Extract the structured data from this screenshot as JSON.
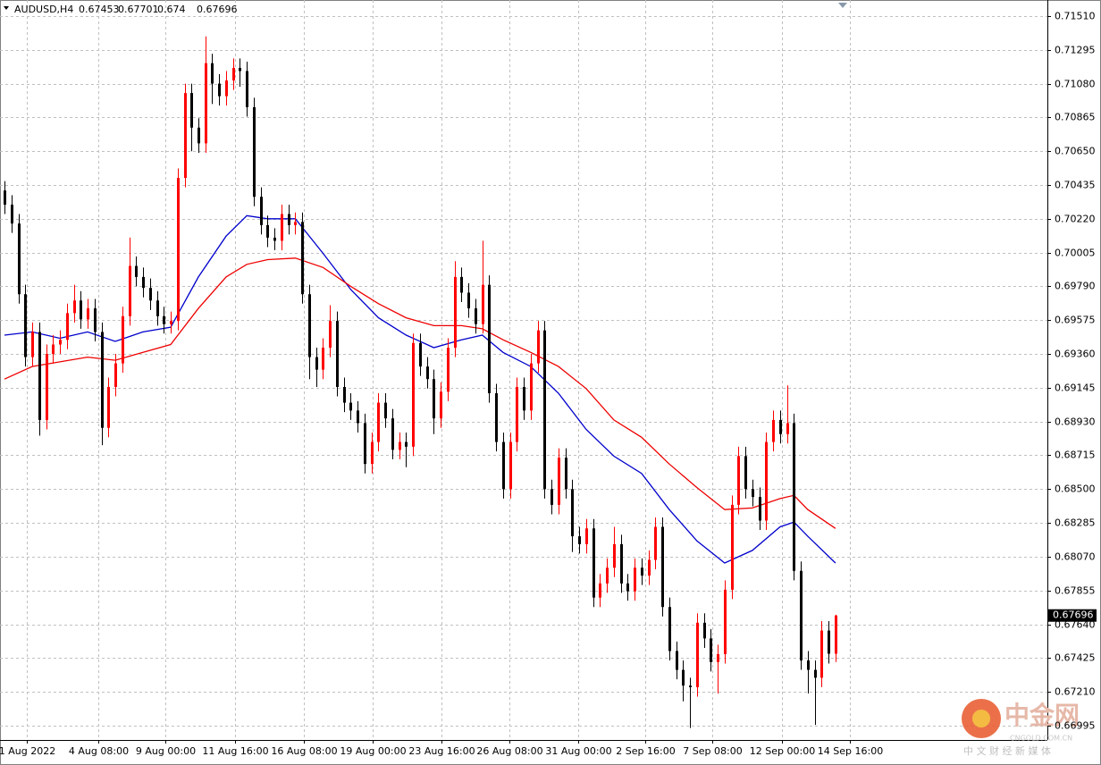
{
  "chart_data": {
    "type": "candlestick",
    "title": "AUDUSD,H4",
    "up_color": "#ff0000",
    "down_color": "#000000",
    "grid": true,
    "open": [
      0.704,
      0.7031,
      0.7019,
      0.6974,
      0.6934,
      0.695,
      0.6894,
      0.6936,
      0.6942,
      0.6945,
      0.6962,
      0.697,
      0.6958,
      0.6965,
      0.695,
      0.6889,
      0.6915,
      0.693,
      0.696,
      0.6992,
      0.6985,
      0.6978,
      0.697,
      0.696,
      0.6955,
      0.6957,
      0.7048,
      0.7102,
      0.708,
      0.707,
      0.7121,
      0.7108,
      0.71,
      0.711,
      0.7118,
      0.7116,
      0.7093,
      0.7036,
      0.7018,
      0.701,
      0.7008,
      0.7025,
      0.7018,
      0.702,
      0.6974,
      0.6934,
      0.6926,
      0.694,
      0.6957,
      0.6915,
      0.6905,
      0.69,
      0.6892,
      0.6866,
      0.688,
      0.6905,
      0.6895,
      0.6875,
      0.688,
      0.6877,
      0.6943,
      0.6928,
      0.692,
      0.6895,
      0.6912,
      0.694,
      0.6985,
      0.6975,
      0.6965,
      0.6955,
      0.698,
      0.6911,
      0.688,
      0.685,
      0.688,
      0.6915,
      0.69,
      0.693,
      0.6951,
      0.685,
      0.684,
      0.687,
      0.685,
      0.682,
      0.6815,
      0.6825,
      0.6781,
      0.679,
      0.68,
      0.6815,
      0.679,
      0.6785,
      0.68,
      0.6795,
      0.6805,
      0.6826,
      0.6775,
      0.6747,
      0.6735,
      0.6725,
      0.6724,
      0.6765,
      0.6755,
      0.674,
      0.6745,
      0.6786,
      0.684,
      0.6871,
      0.685,
      0.6845,
      0.683,
      0.688,
      0.6894,
      0.6885,
      0.6892,
      0.6798,
      0.6741,
      0.6735,
      0.673,
      0.676,
      0.67453
    ],
    "high": [
      0.7046,
      0.7037,
      0.7025,
      0.698,
      0.6956,
      0.6956,
      0.6942,
      0.6948,
      0.6951,
      0.6968,
      0.698,
      0.6976,
      0.6971,
      0.6971,
      0.6956,
      0.6921,
      0.6936,
      0.6966,
      0.701,
      0.6998,
      0.6991,
      0.6984,
      0.6976,
      0.6966,
      0.6963,
      0.7054,
      0.7108,
      0.7108,
      0.7086,
      0.7138,
      0.7127,
      0.7114,
      0.7116,
      0.7124,
      0.7124,
      0.7122,
      0.7099,
      0.7042,
      0.7024,
      0.7016,
      0.7031,
      0.7031,
      0.7026,
      0.7026,
      0.698,
      0.694,
      0.6946,
      0.6967,
      0.6963,
      0.6921,
      0.6911,
      0.6906,
      0.6898,
      0.6886,
      0.6911,
      0.6911,
      0.6901,
      0.6886,
      0.6886,
      0.6949,
      0.6949,
      0.6934,
      0.6926,
      0.6918,
      0.6946,
      0.6995,
      0.6991,
      0.6981,
      0.6971,
      0.7008,
      0.6986,
      0.6917,
      0.6886,
      0.6886,
      0.6921,
      0.6921,
      0.6936,
      0.6957,
      0.6957,
      0.6856,
      0.6876,
      0.6876,
      0.6856,
      0.6826,
      0.6831,
      0.6831,
      0.6796,
      0.6806,
      0.6826,
      0.6821,
      0.6796,
      0.6806,
      0.6806,
      0.6811,
      0.6832,
      0.6832,
      0.6781,
      0.6753,
      0.6741,
      0.673,
      0.6771,
      0.6771,
      0.6761,
      0.6751,
      0.6792,
      0.6846,
      0.6877,
      0.6877,
      0.6856,
      0.6851,
      0.6886,
      0.69,
      0.69,
      0.6916,
      0.6898,
      0.6804,
      0.6747,
      0.6741,
      0.6766,
      0.6766,
      0.67701
    ],
    "low": [
      0.7025,
      0.7013,
      0.6968,
      0.6928,
      0.6928,
      0.6884,
      0.6888,
      0.693,
      0.6936,
      0.6939,
      0.6956,
      0.6952,
      0.6952,
      0.6944,
      0.6878,
      0.6883,
      0.6909,
      0.6924,
      0.6954,
      0.6979,
      0.6972,
      0.6964,
      0.6954,
      0.6949,
      0.6949,
      0.6951,
      0.7042,
      0.7065,
      0.7064,
      0.7064,
      0.7095,
      0.7094,
      0.7094,
      0.7104,
      0.7106,
      0.7087,
      0.703,
      0.7012,
      0.7004,
      0.7002,
      0.7002,
      0.7012,
      0.7012,
      0.6968,
      0.692,
      0.6915,
      0.692,
      0.6934,
      0.6909,
      0.6899,
      0.6894,
      0.6886,
      0.686,
      0.686,
      0.6874,
      0.6889,
      0.6869,
      0.6869,
      0.6864,
      0.6871,
      0.6922,
      0.6914,
      0.6885,
      0.6889,
      0.6906,
      0.6934,
      0.6969,
      0.6959,
      0.6949,
      0.6949,
      0.6905,
      0.6874,
      0.6844,
      0.6844,
      0.6874,
      0.6894,
      0.6894,
      0.6924,
      0.6844,
      0.6834,
      0.6834,
      0.6844,
      0.681,
      0.6809,
      0.6809,
      0.6775,
      0.6775,
      0.6784,
      0.6794,
      0.6784,
      0.6779,
      0.6779,
      0.6789,
      0.6789,
      0.6799,
      0.6769,
      0.6741,
      0.6729,
      0.6715,
      0.6698,
      0.6718,
      0.6749,
      0.6734,
      0.672,
      0.6739,
      0.678,
      0.6834,
      0.6844,
      0.6839,
      0.6824,
      0.6824,
      0.6874,
      0.6879,
      0.6879,
      0.6792,
      0.6735,
      0.672,
      0.67,
      0.6724,
      0.6739,
      0.674
    ],
    "close": [
      0.7031,
      0.7019,
      0.6974,
      0.6934,
      0.695,
      0.6894,
      0.6936,
      0.6942,
      0.6945,
      0.6962,
      0.697,
      0.6958,
      0.6965,
      0.695,
      0.6889,
      0.6915,
      0.693,
      0.696,
      0.6992,
      0.6985,
      0.6978,
      0.697,
      0.696,
      0.6955,
      0.6957,
      0.7048,
      0.7102,
      0.708,
      0.707,
      0.7121,
      0.7108,
      0.71,
      0.711,
      0.7118,
      0.7116,
      0.7093,
      0.7036,
      0.7018,
      0.701,
      0.7008,
      0.7025,
      0.7018,
      0.702,
      0.6974,
      0.6934,
      0.6926,
      0.694,
      0.6957,
      0.6915,
      0.6905,
      0.69,
      0.6892,
      0.6866,
      0.688,
      0.6905,
      0.6895,
      0.6875,
      0.688,
      0.6877,
      0.6943,
      0.6928,
      0.692,
      0.6895,
      0.6912,
      0.694,
      0.6985,
      0.6975,
      0.6965,
      0.6955,
      0.698,
      0.6911,
      0.688,
      0.685,
      0.688,
      0.6915,
      0.69,
      0.693,
      0.6951,
      0.685,
      0.684,
      0.687,
      0.685,
      0.682,
      0.6815,
      0.6825,
      0.6781,
      0.679,
      0.68,
      0.6815,
      0.679,
      0.6785,
      0.68,
      0.6795,
      0.6805,
      0.6826,
      0.6775,
      0.6747,
      0.6735,
      0.6725,
      0.6724,
      0.6765,
      0.6755,
      0.674,
      0.6745,
      0.6786,
      0.684,
      0.6871,
      0.685,
      0.6845,
      0.683,
      0.688,
      0.6894,
      0.6885,
      0.6892,
      0.6798,
      0.6741,
      0.6735,
      0.673,
      0.676,
      0.67453,
      0.67696
    ],
    "series": [
      {
        "color": "#0000cc",
        "x": [
          0,
          4,
          8,
          12,
          16,
          20,
          24,
          28,
          32,
          35,
          38,
          42,
          46,
          50,
          54,
          58,
          62,
          66,
          69,
          72,
          76,
          80,
          84,
          88,
          92,
          96,
          100,
          104,
          108,
          112,
          114,
          116,
          120
        ],
        "values": [
          0.6948,
          0.695,
          0.6946,
          0.695,
          0.6944,
          0.695,
          0.6953,
          0.6985,
          0.7011,
          0.7024,
          0.7022,
          0.7022,
          0.7,
          0.6977,
          0.6959,
          0.6948,
          0.694,
          0.6945,
          0.6948,
          0.6937,
          0.6928,
          0.6911,
          0.6888,
          0.6871,
          0.686,
          0.6837,
          0.6817,
          0.6803,
          0.6811,
          0.6826,
          0.6829,
          0.682,
          0.6803
        ]
      },
      {
        "color": "#ee0000",
        "x": [
          0,
          4,
          8,
          12,
          16,
          20,
          24,
          28,
          32,
          35,
          38,
          42,
          46,
          50,
          54,
          58,
          62,
          66,
          69,
          72,
          76,
          80,
          84,
          88,
          92,
          96,
          100,
          104,
          108,
          112,
          114,
          116,
          120
        ],
        "values": [
          0.692,
          0.6928,
          0.6931,
          0.6934,
          0.6932,
          0.6937,
          0.6942,
          0.6965,
          0.6985,
          0.6993,
          0.6996,
          0.6997,
          0.6991,
          0.6979,
          0.6968,
          0.6959,
          0.6954,
          0.6954,
          0.6952,
          0.6945,
          0.6937,
          0.6928,
          0.6914,
          0.6894,
          0.6883,
          0.6866,
          0.6851,
          0.6837,
          0.6838,
          0.6844,
          0.6846,
          0.6837,
          0.6825
        ]
      }
    ],
    "xlim": [
      -0.65,
      150.6
    ],
    "xticks": [
      {
        "value": 3.2,
        "label": "1 Aug 2022"
      },
      {
        "value": 13.5,
        "label": "4 Aug 08:00"
      },
      {
        "value": 23.2,
        "label": "9 Aug 00:00"
      },
      {
        "value": 33.3,
        "label": "11 Aug 16:00"
      },
      {
        "value": 43.2,
        "label": "16 Aug 08:00"
      },
      {
        "value": 53.2,
        "label": "19 Aug 00:00"
      },
      {
        "value": 63.1,
        "label": "23 Aug 16:00"
      },
      {
        "value": 72.9,
        "label": "26 Aug 08:00"
      },
      {
        "value": 82.8,
        "label": "31 Aug 00:00"
      },
      {
        "value": 92.5,
        "label": "2 Sep 16:00"
      },
      {
        "value": 102.2,
        "label": "7 Sep 08:00"
      },
      {
        "value": 112.3,
        "label": "12 Sep 00:00"
      },
      {
        "value": 122.1,
        "label": "14 Sep 16:00"
      }
    ],
    "ylim": [
      0.66904,
      0.71612
    ],
    "yticks": [
      {
        "value": 0.7151,
        "label": "0.71510"
      },
      0.71295,
      {
        "value": 0.7108,
        "label": "0.71080"
      },
      0.70865,
      {
        "value": 0.7065,
        "label": "0.70650"
      },
      0.70435,
      {
        "value": 0.7022,
        "label": "0.70220"
      },
      0.70005,
      {
        "value": 0.6979,
        "label": "0.69790"
      },
      0.69575,
      {
        "value": 0.6936,
        "label": "0.69360"
      },
      0.69145,
      {
        "value": 0.6893,
        "label": "0.68930"
      },
      0.68715,
      {
        "value": 0.685,
        "label": "0.68500"
      },
      0.68285,
      {
        "value": 0.6807,
        "label": "0.68070"
      },
      0.67855,
      {
        "value": 0.6764,
        "label": "0.67640"
      },
      0.67425,
      {
        "value": 0.6721,
        "label": "0.67210"
      },
      0.66995
    ]
  },
  "watermark": {
    "name": "中金网",
    "site": "CNGOLD.COM.CN",
    "slogan": "中 文 财 经 新 媒 体"
  }
}
